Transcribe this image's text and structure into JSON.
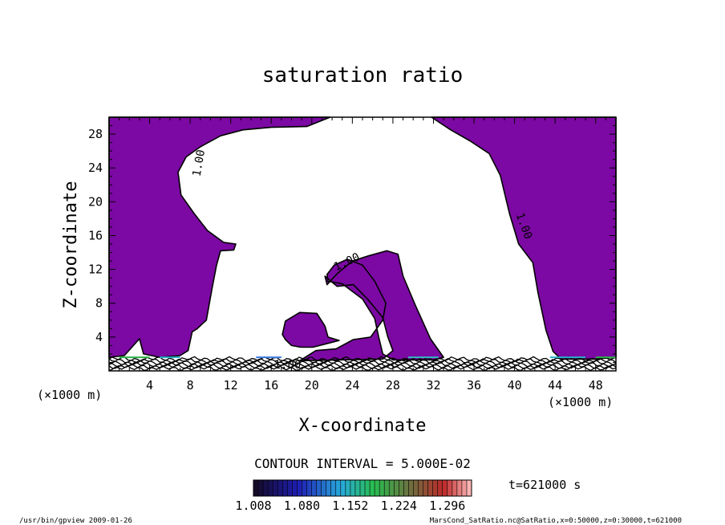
{
  "chart_data": {
    "type": "heatmap",
    "title": "saturation ratio",
    "xlabel": "X-coordinate",
    "ylabel": "Z-coordinate",
    "x_unit_left": "(×1000 m)",
    "x_unit_right": "(×1000 m)",
    "xlim": [
      0,
      50
    ],
    "ylim": [
      0,
      30
    ],
    "x_ticks": [
      4,
      8,
      12,
      16,
      20,
      24,
      28,
      32,
      36,
      40,
      44,
      48
    ],
    "y_ticks": [
      4,
      8,
      12,
      16,
      20,
      24,
      28
    ],
    "contour_interval_text": "CONTOUR INTERVAL = 5.000E-02",
    "time_text": "t=621000 s",
    "colorbar_ticks": [
      "1.008",
      "1.080",
      "1.152",
      "1.224",
      "1.296"
    ],
    "colorbar_range": [
      1.008,
      1.332
    ],
    "contour_labels": [
      {
        "text": "1.00",
        "x": 9.2,
        "y": 24.5,
        "angle": -80
      },
      {
        "text": "1.00",
        "x": 40.6,
        "y": 17.0,
        "angle": 70
      },
      {
        "text": "1.00",
        "x": 23.6,
        "y": 12.5,
        "angle": -25
      },
      {
        "text": "1.00",
        "x": 17.6,
        "y": 0.3,
        "angle": 0
      }
    ],
    "regions": [
      {
        "name": "saturated-left",
        "polygon": [
          [
            0,
            30
          ],
          [
            0,
            1.6
          ],
          [
            1.5,
            1.8
          ],
          [
            3.0,
            3.8
          ],
          [
            3.4,
            2.0
          ],
          [
            5.0,
            1.6
          ],
          [
            7.0,
            1.8
          ],
          [
            7.8,
            2.4
          ],
          [
            8.2,
            4.6
          ],
          [
            8.7,
            5.0
          ],
          [
            9.6,
            6.0
          ],
          [
            10.2,
            10.0
          ],
          [
            10.6,
            12.5
          ],
          [
            11.0,
            14.2
          ],
          [
            12.3,
            14.3
          ],
          [
            12.5,
            15.0
          ],
          [
            11.3,
            15.2
          ],
          [
            9.7,
            16.6
          ],
          [
            8.4,
            18.6
          ],
          [
            7.1,
            20.8
          ],
          [
            6.8,
            23.5
          ],
          [
            7.6,
            25.3
          ],
          [
            9.0,
            26.5
          ],
          [
            11.0,
            27.8
          ],
          [
            13.2,
            28.5
          ],
          [
            16.0,
            28.8
          ],
          [
            19.5,
            28.9
          ],
          [
            21.8,
            30
          ]
        ]
      },
      {
        "name": "saturated-right",
        "polygon": [
          [
            50,
            30
          ],
          [
            50,
            1.6
          ],
          [
            48.0,
            1.4
          ],
          [
            44.6,
            1.4
          ],
          [
            43.8,
            2.3
          ],
          [
            43.1,
            4.8
          ],
          [
            42.3,
            9.3
          ],
          [
            41.8,
            12.8
          ],
          [
            40.4,
            15.0
          ],
          [
            39.5,
            18.6
          ],
          [
            38.6,
            23.1
          ],
          [
            37.5,
            25.7
          ],
          [
            35.6,
            27.2
          ],
          [
            33.7,
            28.5
          ],
          [
            31.8,
            30
          ]
        ]
      },
      {
        "name": "saturated-center",
        "polygon": [
          [
            18.8,
            1.2
          ],
          [
            20.4,
            2.4
          ],
          [
            22.4,
            2.6
          ],
          [
            24.1,
            3.7
          ],
          [
            25.8,
            4.0
          ],
          [
            27.0,
            6.0
          ],
          [
            27.3,
            8.0
          ],
          [
            26.2,
            10.6
          ],
          [
            25.0,
            12.5
          ],
          [
            23.5,
            13.2
          ],
          [
            22.2,
            12.5
          ],
          [
            21.5,
            11.4
          ],
          [
            21.6,
            10.6
          ],
          [
            23.0,
            10.3
          ],
          [
            25.0,
            8.5
          ],
          [
            26.2,
            6.2
          ],
          [
            26.6,
            4.0
          ],
          [
            27.0,
            2.0
          ],
          [
            28.0,
            1.3
          ],
          [
            32.0,
            1.3
          ],
          [
            33.0,
            1.6
          ],
          [
            31.7,
            3.8
          ],
          [
            30.2,
            7.8
          ],
          [
            29.0,
            11.2
          ],
          [
            28.5,
            13.8
          ],
          [
            27.4,
            14.2
          ],
          [
            25.6,
            13.6
          ],
          [
            24.0,
            13.0
          ],
          [
            22.5,
            11.5
          ],
          [
            21.5,
            10.2
          ],
          [
            21.3,
            11.2
          ],
          [
            22.5,
            10.0
          ],
          [
            24.1,
            10.2
          ],
          [
            25.5,
            8.5
          ],
          [
            27.0,
            6.3
          ],
          [
            27.5,
            4.0
          ],
          [
            28.0,
            2.4
          ],
          [
            27.0,
            1.4
          ]
        ]
      },
      {
        "name": "saturated-blob",
        "polygon": [
          [
            17.1,
            4.3
          ],
          [
            17.4,
            5.9
          ],
          [
            18.8,
            6.9
          ],
          [
            20.5,
            6.8
          ],
          [
            21.3,
            5.3
          ],
          [
            21.6,
            4.0
          ],
          [
            22.7,
            3.6
          ],
          [
            21.4,
            3.2
          ],
          [
            20.1,
            2.8
          ],
          [
            18.9,
            2.8
          ],
          [
            18.0,
            3.0
          ],
          [
            17.4,
            3.7
          ]
        ]
      }
    ],
    "colors": {
      "saturated": "#7c09a3",
      "background": "#ffffff",
      "axis": "#000000"
    }
  },
  "footer": {
    "left": "/usr/bin/gpview  2009-01-26",
    "right": "MarsCond_SatRatio.nc@SatRatio,x=0:50000,z=0:30000,t=621000"
  }
}
